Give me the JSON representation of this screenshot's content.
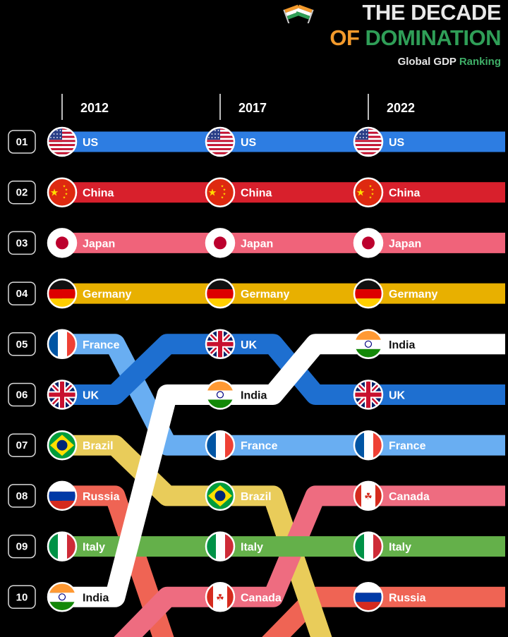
{
  "header": {
    "title_line_1": "THE DECADE",
    "title_line_2a": "OF ",
    "title_line_2b": "DOMINATION",
    "subtitle_a": "Global GDP ",
    "subtitle_b": "Ranking",
    "title_colors": {
      "line1": "#e9e9e9",
      "accent_orange": "#f39a2c",
      "accent_green": "#2f9e57"
    },
    "flag_icon": "india-crossed-flags-icon"
  },
  "chart_data": {
    "type": "bump",
    "title": "THE DECADE OF DOMINATION",
    "subtitle": "Global GDP Ranking",
    "years": [
      "2012",
      "2017",
      "2022"
    ],
    "rank_labels": [
      "01",
      "02",
      "03",
      "04",
      "05",
      "06",
      "07",
      "08",
      "09",
      "10"
    ],
    "series": [
      {
        "name": "US",
        "color": "#2d7de2",
        "ranks": [
          1,
          1,
          1
        ],
        "flag": "us-flag-icon"
      },
      {
        "name": "China",
        "color": "#d8202c",
        "ranks": [
          2,
          2,
          2
        ],
        "flag": "china-flag-icon"
      },
      {
        "name": "Japan",
        "color": "#f0637a",
        "ranks": [
          3,
          3,
          3
        ],
        "flag": "japan-flag-icon"
      },
      {
        "name": "Germany",
        "color": "#e8b000",
        "ranks": [
          4,
          4,
          4
        ],
        "flag": "germany-flag-icon"
      },
      {
        "name": "France",
        "color": "#69aef2",
        "ranks": [
          5,
          7,
          7
        ],
        "flag": "france-flag-icon"
      },
      {
        "name": "UK",
        "color": "#1e6fd0",
        "ranks": [
          6,
          5,
          6
        ],
        "flag": "uk-flag-icon"
      },
      {
        "name": "Brazil",
        "color": "#e9cc5a",
        "ranks": [
          7,
          8,
          null
        ],
        "flag": "brazil-flag-icon"
      },
      {
        "name": "Russia",
        "color": "#ef6454",
        "ranks": [
          8,
          null,
          10
        ],
        "flag": "russia-flag-icon"
      },
      {
        "name": "Italy",
        "color": "#64b04a",
        "ranks": [
          9,
          9,
          9
        ],
        "flag": "italy-flag-icon"
      },
      {
        "name": "Canada",
        "color": "#ee6c80",
        "ranks": [
          null,
          10,
          8
        ],
        "flag": "canada-flag-icon"
      },
      {
        "name": "India",
        "color": "#ffffff",
        "text_color": "#111111",
        "ranks": [
          10,
          6,
          5
        ],
        "flag": "india-flag-icon"
      }
    ]
  }
}
